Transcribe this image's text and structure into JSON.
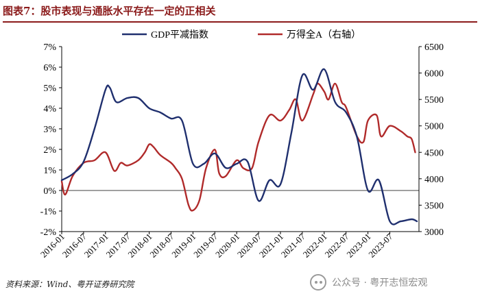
{
  "header": {
    "title": "图表7：股市表现与通胀水平存在一定的正相关"
  },
  "footer": {
    "source": "资料来源：Wind、粤开证券研究院",
    "watermark": "公众号 · 粤开志恒宏观"
  },
  "chart_data": {
    "type": "line",
    "legend_position": "top",
    "grid": false,
    "x_labels": [
      "2016-01",
      "2016-07",
      "2017-01",
      "2017-07",
      "2018-01",
      "2018-07",
      "2019-01",
      "2019-07",
      "2020-01",
      "2020-07",
      "2021-01",
      "2021-07",
      "2022-01",
      "2022-07",
      "2023-01",
      "2023-07"
    ],
    "y_left": {
      "ticks": [
        "-2%",
        "-1%",
        "0%",
        "1%",
        "2%",
        "3%",
        "4%",
        "5%",
        "6%",
        "7%"
      ],
      "range": [
        -2,
        7
      ]
    },
    "y_right": {
      "ticks": [
        "3000",
        "3500",
        "4000",
        "4500",
        "5000",
        "5500",
        "6000",
        "6500"
      ],
      "range": [
        3000,
        6500
      ]
    },
    "series": [
      {
        "name": "GDP平减指数",
        "axis": "left",
        "color": "#1f2f6e",
        "x": [
          2016.0,
          2016.25,
          2016.5,
          2016.75,
          2017.0,
          2017.1,
          2017.25,
          2017.5,
          2017.75,
          2018.0,
          2018.25,
          2018.5,
          2018.75,
          2019.0,
          2019.25,
          2019.5,
          2019.75,
          2020.0,
          2020.25,
          2020.5,
          2020.75,
          2021.0,
          2021.25,
          2021.5,
          2021.75,
          2022.0,
          2022.25,
          2022.5,
          2022.75,
          2023.0,
          2023.25,
          2023.5,
          2023.75,
          2024.0,
          2024.12
        ],
        "values": [
          0.5,
          0.8,
          1.4,
          3.0,
          4.9,
          5.0,
          4.3,
          4.5,
          4.5,
          4.0,
          3.8,
          3.5,
          3.4,
          1.3,
          1.3,
          1.8,
          1.1,
          1.3,
          1.4,
          -0.5,
          0.5,
          0.3,
          2.8,
          5.6,
          4.9,
          5.9,
          4.3,
          3.8,
          2.6,
          0.0,
          0.5,
          -1.5,
          -1.5,
          -1.4,
          -1.5
        ]
      },
      {
        "name": "万得全A（右轴）",
        "axis": "right",
        "color": "#b02a2a",
        "x": [
          2016.0,
          2016.08,
          2016.25,
          2016.5,
          2016.75,
          2017.0,
          2017.2,
          2017.35,
          2017.5,
          2017.75,
          2017.9,
          2018.0,
          2018.1,
          2018.25,
          2018.5,
          2018.6,
          2018.75,
          2018.9,
          2019.0,
          2019.15,
          2019.3,
          2019.5,
          2019.6,
          2019.75,
          2020.0,
          2020.15,
          2020.35,
          2020.5,
          2020.75,
          2021.0,
          2021.2,
          2021.35,
          2021.5,
          2021.75,
          2021.85,
          2022.0,
          2022.1,
          2022.25,
          2022.4,
          2022.5,
          2022.75,
          2022.9,
          2023.0,
          2023.2,
          2023.3,
          2023.5,
          2023.75,
          2023.9,
          2024.0,
          2024.08
        ],
        "values": [
          3950,
          3700,
          4050,
          4300,
          4350,
          4500,
          4150,
          4300,
          4250,
          4350,
          4500,
          4650,
          4600,
          4450,
          4300,
          4200,
          4000,
          3500,
          3400,
          3600,
          4200,
          4550,
          4100,
          4050,
          4350,
          4200,
          4200,
          4700,
          5200,
          5100,
          5300,
          5500,
          5100,
          5600,
          5800,
          5650,
          5500,
          5800,
          5450,
          5350,
          4800,
          4700,
          5100,
          5200,
          4800,
          5000,
          4900,
          4800,
          4750,
          4500
        ]
      }
    ]
  }
}
